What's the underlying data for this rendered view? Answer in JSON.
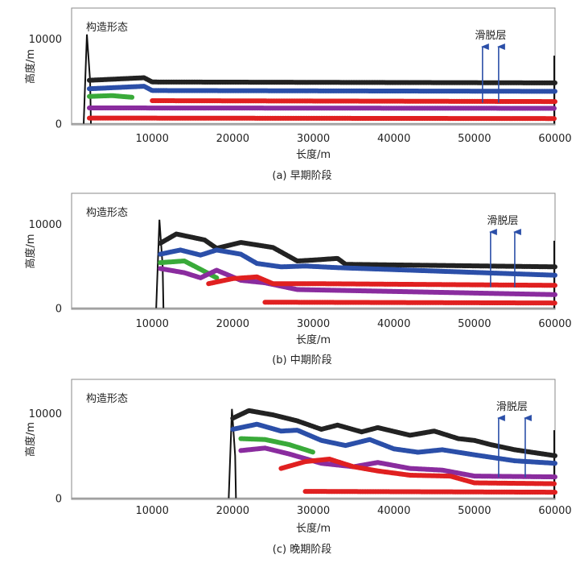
{
  "chart_data": [
    {
      "type": "line",
      "panel": "a",
      "annotation": "构造形态",
      "layer_label": "滑脱层",
      "caption": "(a) 早期阶段",
      "xlabel": "长度/m",
      "ylabel": "高度/m",
      "xlim": [
        0,
        60000
      ],
      "ylim": [
        0,
        13000
      ],
      "xticks": [
        "10000",
        "20000",
        "30000",
        "40000",
        "50000",
        "60000"
      ],
      "yticks": [
        "0",
        "10000"
      ],
      "deformation_front_x": 1800,
      "arrows_x": [
        51000,
        53000
      ],
      "series": [
        {
          "name": "top",
          "color": "#222222",
          "x": [
            2200,
            9000,
            10000,
            60000
          ],
          "y": [
            5100,
            5400,
            4900,
            4800
          ]
        },
        {
          "name": "blue",
          "color": "#2b4fa8",
          "x": [
            2200,
            9000,
            10000,
            60000
          ],
          "y": [
            4100,
            4400,
            3900,
            3800
          ]
        },
        {
          "name": "green",
          "color": "#3aaa3a",
          "x": [
            2200,
            5000,
            7500
          ],
          "y": [
            3200,
            3300,
            3100
          ]
        },
        {
          "name": "red-upper",
          "color": "#e02020",
          "x": [
            10000,
            60000
          ],
          "y": [
            2700,
            2600
          ]
        },
        {
          "name": "purple",
          "color": "#8a2c9e",
          "x": [
            2200,
            60000
          ],
          "y": [
            1850,
            1800
          ]
        },
        {
          "name": "red-lower",
          "color": "#e02020",
          "x": [
            2200,
            60000
          ],
          "y": [
            650,
            600
          ]
        }
      ]
    },
    {
      "type": "line",
      "panel": "b",
      "annotation": "构造形态",
      "layer_label": "滑脱层",
      "caption": "(b) 中期阶段",
      "xlabel": "长度/m",
      "ylabel": "高度/m",
      "xlim": [
        0,
        60000
      ],
      "ylim": [
        0,
        13000
      ],
      "xticks": [
        "10000",
        "20000",
        "30000",
        "40000",
        "50000",
        "60000"
      ],
      "yticks": [
        "0",
        "10000"
      ],
      "deformation_front_x": 10800,
      "arrows_x": [
        52000,
        55000
      ],
      "series": [
        {
          "name": "top",
          "color": "#222222",
          "x": [
            11000,
            13000,
            16500,
            18000,
            21000,
            25000,
            28000,
            30000,
            33000,
            34000,
            60000
          ],
          "y": [
            7700,
            8800,
            8100,
            7100,
            7800,
            7200,
            5600,
            5700,
            5900,
            5200,
            4900
          ]
        },
        {
          "name": "blue",
          "color": "#2b4fa8",
          "x": [
            11000,
            13500,
            16000,
            18000,
            21000,
            23000,
            26000,
            29000,
            33000,
            60000
          ],
          "y": [
            6400,
            6900,
            6300,
            6900,
            6400,
            5300,
            4900,
            5000,
            4800,
            3900
          ]
        },
        {
          "name": "green",
          "color": "#3aaa3a",
          "x": [
            11000,
            14000,
            16000,
            18000
          ],
          "y": [
            5400,
            5600,
            4600,
            3600
          ]
        },
        {
          "name": "purple",
          "color": "#8a2c9e",
          "x": [
            11000,
            14000,
            16000,
            18000,
            21000,
            24000,
            28000,
            60000
          ],
          "y": [
            4700,
            4200,
            3600,
            4500,
            3300,
            3000,
            2200,
            1600
          ]
        },
        {
          "name": "red-upper",
          "color": "#e02020",
          "x": [
            17000,
            20000,
            23000,
            25000,
            30000,
            60000
          ],
          "y": [
            2900,
            3500,
            3700,
            2900,
            2900,
            2700
          ]
        },
        {
          "name": "red-lower",
          "color": "#e02020",
          "x": [
            24000,
            60000
          ],
          "y": [
            700,
            600
          ]
        }
      ]
    },
    {
      "type": "line",
      "panel": "c",
      "annotation": "构造形态",
      "layer_label": "滑脱层",
      "caption": "(c) 晚期阶段",
      "xlabel": "长度/m",
      "ylabel": "高度/m",
      "xlim": [
        0,
        60000
      ],
      "ylim": [
        0,
        13000
      ],
      "xticks": [
        "10000",
        "20000",
        "30000",
        "40000",
        "50000",
        "60000"
      ],
      "yticks": [
        "0",
        "10000"
      ],
      "deformation_front_x": 19800,
      "arrows_x": [
        53000,
        56300
      ],
      "series": [
        {
          "name": "top",
          "color": "#222222",
          "x": [
            20000,
            22000,
            25000,
            28000,
            31000,
            33000,
            36000,
            38000,
            42000,
            45000,
            48000,
            50000,
            52000,
            55000,
            60000
          ],
          "y": [
            9400,
            10300,
            9800,
            9100,
            8100,
            8600,
            7800,
            8300,
            7400,
            7900,
            7000,
            6800,
            6300,
            5700,
            5000
          ]
        },
        {
          "name": "blue",
          "color": "#2b4fa8",
          "x": [
            20000,
            23000,
            26000,
            28000,
            31000,
            34000,
            37000,
            40000,
            43000,
            46000,
            50000,
            55000,
            60000
          ],
          "y": [
            8100,
            8700,
            7900,
            8000,
            6800,
            6200,
            6900,
            5800,
            5400,
            5700,
            5100,
            4400,
            4100
          ]
        },
        {
          "name": "green",
          "color": "#3aaa3a",
          "x": [
            21000,
            24000,
            27000,
            30000
          ],
          "y": [
            7000,
            6900,
            6300,
            5400
          ]
        },
        {
          "name": "purple",
          "color": "#8a2c9e",
          "x": [
            21000,
            24000,
            27000,
            31000,
            35000,
            38000,
            42000,
            46000,
            50000,
            60000
          ],
          "y": [
            5600,
            5900,
            5200,
            4100,
            3700,
            4200,
            3500,
            3300,
            2600,
            2500
          ]
        },
        {
          "name": "red-upper",
          "color": "#e02020",
          "x": [
            26000,
            29000,
            32000,
            35000,
            38000,
            42000,
            47000,
            50000,
            60000
          ],
          "y": [
            3500,
            4300,
            4600,
            3700,
            3200,
            2700,
            2600,
            1800,
            1700
          ]
        },
        {
          "name": "red-lower",
          "color": "#e02020",
          "x": [
            29000,
            60000
          ],
          "y": [
            800,
            700
          ]
        }
      ]
    }
  ]
}
